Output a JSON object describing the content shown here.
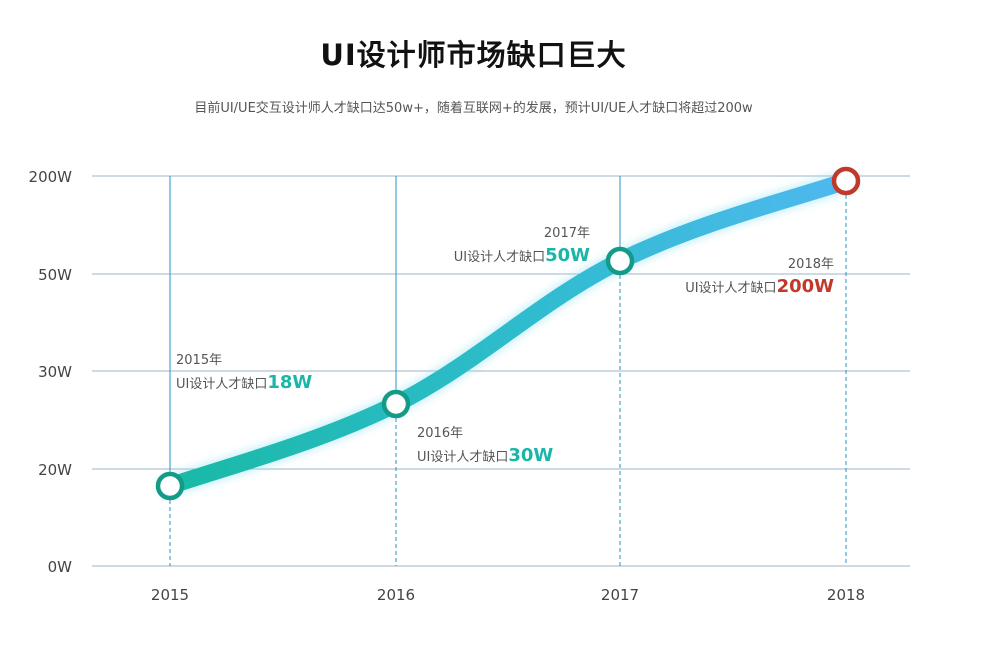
{
  "title": "UI设计师市场缺口巨大",
  "subtitle": "目前UI/UE交互设计师人才缺口达50w+，随着互联网+的发展，预计UI/UE人才缺口将超过200w",
  "chart_data": {
    "type": "line",
    "x": [
      "2015",
      "2016",
      "2017",
      "2018"
    ],
    "y_ticks": [
      "0W",
      "20W",
      "30W",
      "50W",
      "200W"
    ],
    "values": [
      18,
      30,
      50,
      200
    ],
    "grid": true,
    "annotations": [
      {
        "year": "2015年",
        "text": "UI设计人才缺口",
        "value": "18W",
        "color": "#1ab6aa"
      },
      {
        "year": "2016年",
        "text": "UI设计人才缺口",
        "value": "30W",
        "color": "#1ab6aa"
      },
      {
        "year": "2017年",
        "text": "UI设计人才缺口",
        "value": "50W",
        "color": "#1ab6aa"
      },
      {
        "year": "2018年",
        "text": "UI设计人才缺口",
        "value": "200W",
        "color": "#c0392b"
      }
    ],
    "colors": {
      "line_start": "#19b9a6",
      "line_end": "#4fb8ef",
      "marker": "#149b87",
      "marker_last": "#c0392b",
      "grid": "#9fb3c8",
      "vline": "#2a93c6"
    }
  }
}
